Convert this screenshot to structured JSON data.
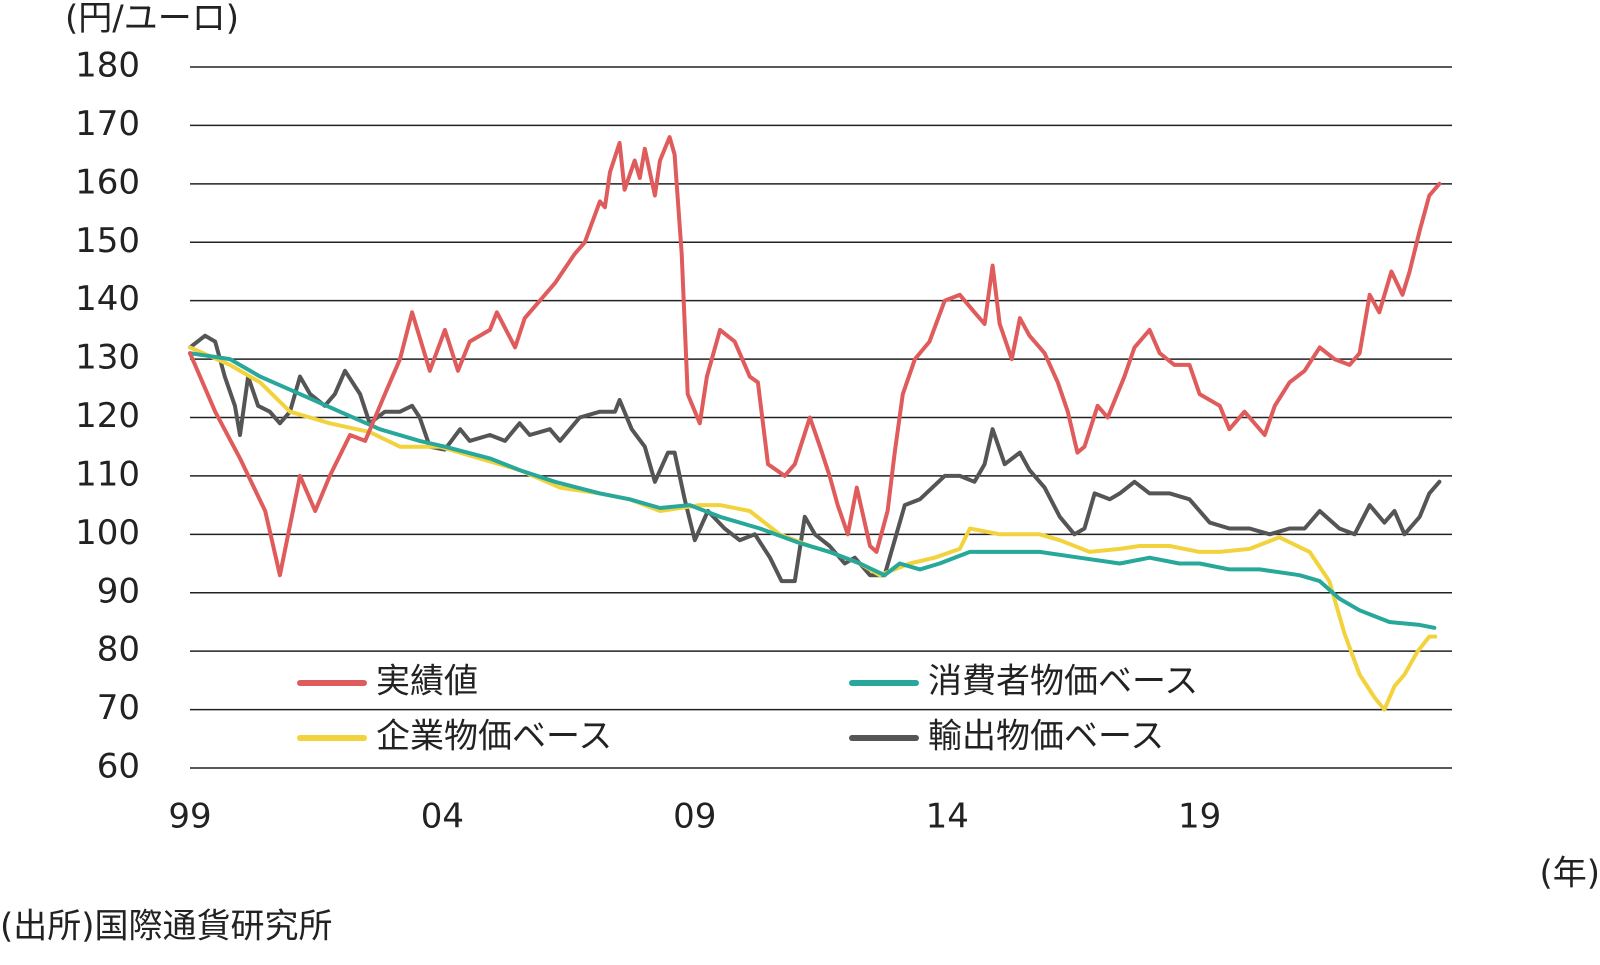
{
  "chart_data": {
    "type": "line",
    "y_label": "(円/ユーロ)",
    "x_label": "(年)",
    "source": "(出所)国際通貨研究所",
    "xlim": [
      1999,
      2024
    ],
    "xticks": [
      {
        "value": 1999,
        "label": "99"
      },
      {
        "value": 2004,
        "label": "04"
      },
      {
        "value": 2009,
        "label": "09"
      },
      {
        "value": 2014,
        "label": "14"
      },
      {
        "value": 2019,
        "label": "19"
      }
    ],
    "ylim": [
      60,
      180
    ],
    "yticks": [
      60,
      70,
      80,
      90,
      100,
      110,
      120,
      130,
      140,
      150,
      160,
      170,
      180
    ],
    "grid": true,
    "legend": "bottom",
    "series": [
      {
        "name": "実績値",
        "color": "#e05b5b",
        "x": [
          1999.0,
          1999.5,
          1999.99,
          2000.49,
          2000.78,
          2001.18,
          2001.48,
          2001.77,
          2002.17,
          2002.47,
          2002.86,
          2003.16,
          2003.4,
          2003.75,
          2004.05,
          2004.31,
          2004.54,
          2004.94,
          2005.08,
          2005.44,
          2005.63,
          2006.03,
          2006.23,
          2006.62,
          2006.82,
          2007.12,
          2007.22,
          2007.32,
          2007.51,
          2007.61,
          2007.81,
          2007.91,
          2008.01,
          2008.21,
          2008.31,
          2008.5,
          2008.6,
          2008.74,
          2008.86,
          2009.1,
          2009.24,
          2009.5,
          2009.79,
          2010.09,
          2010.25,
          2010.45,
          2010.78,
          2010.98,
          2011.28,
          2011.48,
          2011.67,
          2011.83,
          2012.03,
          2012.21,
          2012.47,
          2012.6,
          2012.82,
          2012.96,
          2013.12,
          2013.36,
          2013.65,
          2013.95,
          2014.25,
          2014.54,
          2014.74,
          2014.9,
          2015.04,
          2015.28,
          2015.44,
          2015.63,
          2015.93,
          2016.19,
          2016.39,
          2016.58,
          2016.72,
          2016.98,
          2017.18,
          2017.51,
          2017.71,
          2018.01,
          2018.21,
          2018.5,
          2018.8,
          2019.0,
          2019.4,
          2019.59,
          2019.89,
          2020.29,
          2020.49,
          2020.78,
          2021.08,
          2021.38,
          2021.67,
          2021.97,
          2022.17,
          2022.37,
          2022.56,
          2022.8,
          2023.02,
          2023.16,
          2023.36,
          2023.55,
          2023.75
        ],
        "values": [
          131,
          121,
          113,
          104,
          93,
          110,
          104,
          110,
          117,
          116,
          124,
          130,
          138,
          128,
          135,
          128,
          133,
          135,
          138,
          132,
          137,
          141,
          143,
          148,
          150,
          157,
          156,
          162,
          167,
          159,
          164,
          161,
          166,
          158,
          164,
          168,
          165,
          148,
          124,
          119,
          127,
          135,
          133,
          127,
          126,
          112,
          110,
          112,
          120,
          115,
          110,
          105,
          100,
          108,
          98,
          97,
          104,
          114,
          124,
          130,
          133,
          140,
          141,
          138,
          136,
          146,
          136,
          130,
          137,
          134,
          131,
          126,
          121,
          114,
          115,
          122,
          120,
          127,
          132,
          135,
          131,
          129,
          129,
          124,
          122,
          118,
          121,
          117,
          122,
          126,
          128,
          132,
          130,
          129,
          131,
          141,
          138,
          145,
          141,
          145,
          152,
          158,
          160
        ]
      },
      {
        "name": "消費者物価ベース",
        "color": "#27a89a",
        "x": [
          1999.0,
          1999.79,
          2000.39,
          2001.18,
          2001.97,
          2002.76,
          2003.55,
          2004.05,
          2004.94,
          2005.53,
          2006.23,
          2007.12,
          2007.71,
          2008.31,
          2008.9,
          2009.5,
          2010.29,
          2011.08,
          2011.67,
          2012.27,
          2012.76,
          2013.06,
          2013.46,
          2013.85,
          2014.45,
          2015.04,
          2015.83,
          2016.62,
          2017.42,
          2018.01,
          2018.6,
          2019.0,
          2019.59,
          2020.19,
          2020.98,
          2021.38,
          2021.77,
          2022.17,
          2022.76,
          2023.36,
          2023.65
        ],
        "values": [
          131,
          130,
          127,
          124,
          121,
          118,
          116,
          115,
          113,
          111,
          109,
          107,
          106,
          104.5,
          105,
          103,
          101,
          98.5,
          97,
          95,
          93,
          95,
          94,
          95,
          97,
          97,
          97,
          96,
          95,
          96,
          95,
          95,
          94,
          94,
          93,
          92,
          89,
          87,
          85,
          84.5,
          84
        ]
      },
      {
        "name": "企業物価ベース",
        "color": "#f2d33d",
        "x": [
          1999.0,
          1999.79,
          2000.39,
          2000.98,
          2001.38,
          2001.77,
          2002.56,
          2003.16,
          2003.95,
          2004.74,
          2005.53,
          2006.33,
          2007.12,
          2007.71,
          2008.31,
          2009.1,
          2009.5,
          2010.09,
          2010.68,
          2011.28,
          2011.67,
          2012.27,
          2012.66,
          2013.26,
          2013.75,
          2014.25,
          2014.45,
          2015.04,
          2015.83,
          2016.23,
          2016.82,
          2017.42,
          2017.81,
          2018.41,
          2019.0,
          2019.4,
          2019.99,
          2020.58,
          2021.18,
          2021.57,
          2021.87,
          2022.17,
          2022.47,
          2022.66,
          2022.86,
          2023.06,
          2023.32,
          2023.55,
          2023.67
        ],
        "values": [
          132,
          129,
          126,
          121,
          120,
          119,
          117.5,
          115,
          115,
          113,
          111,
          108,
          107,
          106,
          104,
          105,
          105,
          104,
          100,
          98,
          97,
          95,
          93,
          95,
          96,
          97.5,
          101,
          100,
          100,
          99,
          97,
          97.5,
          98,
          98,
          97,
          97,
          97.5,
          99.5,
          97,
          92,
          83,
          76,
          72,
          70,
          74,
          76,
          80,
          82.5,
          82.5
        ]
      },
      {
        "name": "輸出物価ベース",
        "color": "#555555",
        "x": [
          1999.0,
          1999.3,
          1999.5,
          1999.69,
          1999.89,
          1999.99,
          2000.15,
          2000.35,
          2000.58,
          2000.78,
          2000.98,
          2001.18,
          2001.38,
          2001.67,
          2001.87,
          2002.07,
          2002.37,
          2002.56,
          2002.86,
          2003.16,
          2003.4,
          2003.55,
          2003.75,
          2004.05,
          2004.35,
          2004.54,
          2004.94,
          2005.24,
          2005.53,
          2005.73,
          2006.13,
          2006.33,
          2006.72,
          2007.12,
          2007.42,
          2007.51,
          2007.75,
          2008.01,
          2008.21,
          2008.47,
          2008.6,
          2008.8,
          2009.0,
          2009.26,
          2009.59,
          2009.89,
          2010.19,
          2010.49,
          2010.72,
          2010.98,
          2011.18,
          2011.38,
          2011.67,
          2011.97,
          2012.17,
          2012.47,
          2012.76,
          2012.96,
          2013.16,
          2013.46,
          2013.95,
          2014.25,
          2014.54,
          2014.74,
          2014.9,
          2015.14,
          2015.44,
          2015.63,
          2015.93,
          2016.23,
          2016.52,
          2016.72,
          2016.92,
          2017.22,
          2017.42,
          2017.71,
          2018.01,
          2018.41,
          2018.8,
          2019.2,
          2019.59,
          2019.99,
          2020.39,
          2020.78,
          2021.08,
          2021.38,
          2021.77,
          2022.07,
          2022.37,
          2022.66,
          2022.86,
          2023.06,
          2023.36,
          2023.55,
          2023.75
        ],
        "values": [
          132,
          134,
          133,
          127,
          122,
          117,
          127,
          122,
          121,
          119,
          121,
          127,
          124,
          122,
          124,
          128,
          124,
          119,
          121,
          121,
          122,
          120,
          115,
          114.5,
          118,
          116,
          117,
          116,
          119,
          117,
          118,
          116,
          120,
          121,
          121,
          123,
          118,
          115,
          109,
          114,
          114,
          106,
          99,
          104,
          101,
          99,
          100,
          96,
          92,
          92,
          103,
          100,
          98,
          95,
          96,
          93,
          93,
          99,
          105,
          106,
          110,
          110,
          109,
          112,
          118,
          112,
          114,
          111,
          108,
          103,
          100,
          101,
          107,
          106,
          107,
          109,
          107,
          107,
          106,
          102,
          101,
          101,
          100,
          101,
          101,
          104,
          101,
          100,
          105,
          102,
          104,
          100,
          103,
          107,
          109
        ]
      }
    ]
  }
}
